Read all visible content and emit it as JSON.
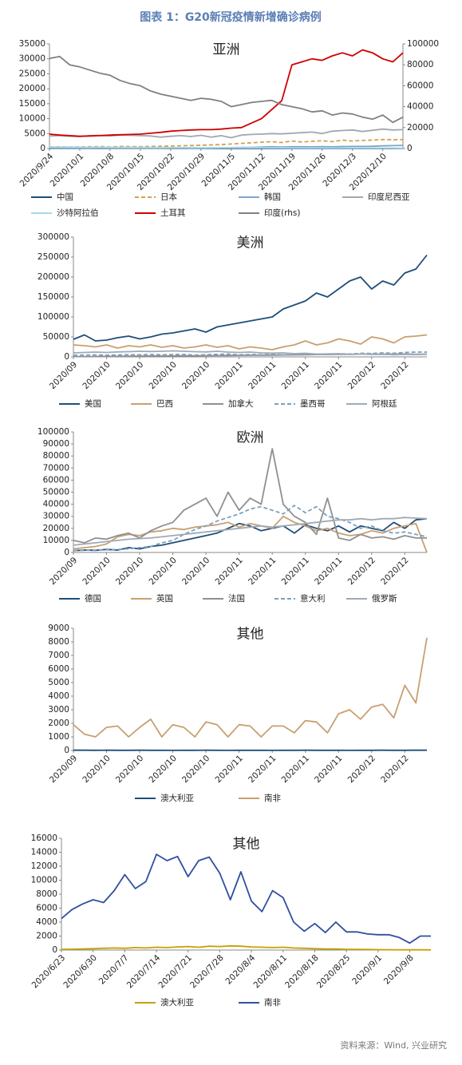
{
  "header": "图表 1：G20新冠疫情新增确诊病例",
  "source": "资料来源：Wind, 兴业研究",
  "chart_data": [
    {
      "type": "line",
      "title": "亚洲",
      "categories": [
        "2020/9/24",
        null,
        null,
        "2020/10/1",
        null,
        null,
        "2020/10/8",
        null,
        null,
        "2020/10/15",
        null,
        null,
        "2020/10/22",
        null,
        null,
        "2020/10/29",
        null,
        null,
        "2020/11/5",
        null,
        null,
        "2020/11/12",
        null,
        null,
        "2020/11/19",
        null,
        null,
        "2020/11/26",
        null,
        null,
        "2020/12/3",
        null,
        null,
        "2020/12/10",
        null,
        null
      ],
      "ylim": [
        0,
        35000
      ],
      "yticks": [
        0,
        5000,
        10000,
        15000,
        20000,
        25000,
        30000,
        35000
      ],
      "y2lim": [
        0,
        100000
      ],
      "y2ticks": [
        0,
        20000,
        40000,
        60000,
        80000,
        100000
      ],
      "series": [
        {
          "name": "中国",
          "color": "#1f4e79",
          "values": [
            20,
            15,
            25,
            20,
            20,
            10,
            20,
            20,
            15,
            20,
            25,
            20,
            20,
            15,
            20,
            25,
            20,
            20,
            15,
            20,
            25,
            20,
            15,
            20,
            20,
            25,
            20,
            15,
            20,
            25,
            20,
            20,
            15,
            20,
            25,
            20
          ]
        },
        {
          "name": "日本",
          "color": "#d4a050",
          "dash": true,
          "values": [
            500,
            600,
            500,
            550,
            600,
            650,
            500,
            700,
            650,
            600,
            700,
            750,
            800,
            900,
            1000,
            1100,
            1200,
            1300,
            1500,
            1700,
            1900,
            2100,
            2300,
            2000,
            2500,
            2200,
            2400,
            2600,
            2300,
            2800,
            2500,
            2700,
            2800,
            3000,
            2900,
            3000
          ]
        },
        {
          "name": "韩国",
          "color": "#7fa7c9",
          "values": [
            100,
            80,
            60,
            70,
            70,
            90,
            100,
            80,
            110,
            100,
            120,
            100,
            130,
            150,
            110,
            140,
            190,
            230,
            300,
            350,
            380,
            500,
            580,
            520,
            600,
            580,
            570,
            650,
            560,
            680,
            700,
            690,
            750,
            880,
            950,
            1050
          ]
        },
        {
          "name": "印度尼西亚",
          "color": "#a0a8b0",
          "values": [
            4200,
            4300,
            4100,
            4000,
            4300,
            4400,
            4200,
            4500,
            4400,
            4300,
            4200,
            3800,
            4100,
            4300,
            4000,
            4400,
            3800,
            4300,
            3600,
            4500,
            4700,
            4800,
            5000,
            4900,
            5100,
            5300,
            5500,
            5000,
            5800,
            6000,
            6200,
            5700,
            6100,
            6500,
            6200,
            6300
          ]
        },
        {
          "name": "沙特阿拉伯",
          "color": "#a8d8e8",
          "values": [
            500,
            480,
            450,
            430,
            400,
            400,
            380,
            370,
            350,
            340,
            330,
            320,
            300,
            300,
            290,
            280,
            270,
            260,
            250,
            250,
            240,
            230,
            220,
            210,
            200,
            200,
            190,
            180,
            180,
            170,
            170,
            160,
            160,
            150,
            150,
            140
          ]
        },
        {
          "name": "土耳其",
          "color": "#d00000",
          "values": [
            4800,
            4500,
            4300,
            4100,
            4200,
            4300,
            4500,
            4600,
            4700,
            4800,
            5100,
            5400,
            5800,
            6000,
            6200,
            6300,
            6300,
            6500,
            6800,
            7000,
            8500,
            10000,
            13000,
            16000,
            28000,
            29000,
            30000,
            29500,
            31000,
            32000,
            31000,
            33000,
            32000,
            30000,
            29000,
            32000
          ]
        },
        {
          "name": "印度(rhs)",
          "color": "#808080",
          "axis": "y2",
          "values": [
            86000,
            88000,
            80000,
            78000,
            75000,
            72000,
            70000,
            65000,
            62000,
            60000,
            55000,
            52000,
            50000,
            48000,
            46000,
            48000,
            47000,
            45000,
            40000,
            42000,
            44000,
            45000,
            46000,
            42000,
            40000,
            38000,
            35000,
            36000,
            32000,
            34000,
            33000,
            30000,
            28000,
            32000,
            25000,
            30000
          ]
        }
      ]
    },
    {
      "type": "line",
      "title": "美洲",
      "categories": [
        "2020/09",
        null,
        null,
        "2020/10",
        null,
        null,
        "2020/10",
        null,
        null,
        "2020/10",
        null,
        null,
        "2020/10",
        null,
        null,
        "2020/11",
        null,
        null,
        "2020/11",
        null,
        null,
        "2020/11",
        null,
        null,
        "2020/11",
        null,
        null,
        "2020/12",
        null,
        null,
        "2020/12",
        null,
        null
      ],
      "ylim": [
        0,
        300000
      ],
      "yticks": [
        0,
        50000,
        100000,
        150000,
        200000,
        250000,
        300000
      ],
      "series": [
        {
          "name": "美国",
          "color": "#1f4e79",
          "values": [
            44000,
            55000,
            40000,
            42000,
            48000,
            52000,
            45000,
            50000,
            57000,
            60000,
            65000,
            70000,
            62000,
            75000,
            80000,
            85000,
            90000,
            95000,
            100000,
            120000,
            130000,
            140000,
            160000,
            150000,
            170000,
            190000,
            200000,
            170000,
            190000,
            180000,
            210000,
            220000,
            255000
          ]
        },
        {
          "name": "巴西",
          "color": "#c8a070",
          "values": [
            30000,
            28000,
            25000,
            30000,
            22000,
            28000,
            25000,
            30000,
            24000,
            28000,
            22000,
            25000,
            30000,
            24000,
            28000,
            20000,
            25000,
            22000,
            18000,
            25000,
            30000,
            40000,
            30000,
            35000,
            45000,
            40000,
            32000,
            50000,
            45000,
            35000,
            50000,
            52000,
            55000
          ]
        },
        {
          "name": "加拿大",
          "color": "#909090",
          "values": [
            800,
            900,
            1000,
            1200,
            1500,
            1800,
            2000,
            2200,
            2300,
            2500,
            2600,
            2800,
            3000,
            3200,
            3500,
            3800,
            4000,
            4300,
            4500,
            4800,
            5000,
            5500,
            5800,
            6000,
            6300,
            6500,
            6700,
            6800,
            6900,
            7000,
            7200,
            6500,
            7000
          ]
        },
        {
          "name": "墨西哥",
          "color": "#7aa0c0",
          "dash": true,
          "values": [
            4000,
            4500,
            5000,
            4200,
            4800,
            5500,
            5000,
            6000,
            5200,
            5800,
            6000,
            4500,
            5500,
            6500,
            7000,
            5000,
            6000,
            5500,
            6500,
            5000,
            6000,
            6500,
            7000,
            5500,
            8000,
            7000,
            9000,
            8500,
            10000,
            9000,
            11000,
            12000,
            12000
          ]
        },
        {
          "name": "阿根廷",
          "color": "#a0aab4",
          "values": [
            10000,
            11000,
            12000,
            11000,
            12500,
            13000,
            14000,
            13500,
            14000,
            15000,
            14000,
            13000,
            12500,
            14000,
            12000,
            11000,
            12000,
            10000,
            9500,
            10000,
            8000,
            9000,
            7000,
            7500,
            8000,
            6500,
            7000,
            6000,
            6500,
            5500,
            6000,
            5800,
            6500
          ]
        }
      ]
    },
    {
      "type": "line",
      "title": "欧洲",
      "categories": [
        "2020/09",
        null,
        null,
        "2020/10",
        null,
        null,
        "2020/10",
        null,
        null,
        "2020/10",
        null,
        null,
        "2020/10",
        null,
        null,
        "2020/11",
        null,
        null,
        "2020/11",
        null,
        null,
        "2020/11",
        null,
        null,
        "2020/11",
        null,
        null,
        "2020/12",
        null,
        null,
        "2020/12",
        null,
        null
      ],
      "ylim": [
        0,
        100000
      ],
      "yticks": [
        0,
        10000,
        20000,
        30000,
        40000,
        50000,
        60000,
        70000,
        80000,
        90000,
        100000
      ],
      "series": [
        {
          "name": "德国",
          "color": "#1f4e79",
          "values": [
            1500,
            2000,
            1800,
            2500,
            2000,
            4000,
            3000,
            5000,
            6000,
            8000,
            10000,
            12000,
            14000,
            16000,
            20000,
            24000,
            22000,
            18000,
            20000,
            22000,
            16000,
            23000,
            20000,
            18000,
            22000,
            17000,
            22000,
            20000,
            18000,
            25000,
            20000,
            27000,
            28000
          ]
        },
        {
          "name": "英国",
          "color": "#c8a070",
          "values": [
            3000,
            4000,
            5000,
            7000,
            13000,
            15000,
            14000,
            17000,
            18000,
            20000,
            19000,
            21000,
            22000,
            23000,
            25000,
            21000,
            24000,
            22000,
            20000,
            30000,
            25000,
            22000,
            18000,
            20000,
            16000,
            14000,
            15000,
            18000,
            16000,
            20000,
            22000,
            24000,
            0
          ]
        },
        {
          "name": "法国",
          "color": "#909090",
          "values": [
            10000,
            8000,
            12000,
            11000,
            14000,
            16000,
            12000,
            18000,
            22000,
            25000,
            35000,
            40000,
            45000,
            30000,
            50000,
            35000,
            45000,
            40000,
            86000,
            40000,
            30000,
            25000,
            15000,
            45000,
            12000,
            10000,
            15000,
            12000,
            13000,
            11000,
            14000,
            12000,
            12000
          ]
        },
        {
          "name": "意大利",
          "color": "#7aa0c0",
          "dash": true,
          "values": [
            1500,
            1800,
            2000,
            2200,
            2500,
            3000,
            4000,
            5000,
            8000,
            10000,
            15000,
            19000,
            22000,
            26000,
            29000,
            32000,
            36000,
            38000,
            35000,
            32000,
            39000,
            33000,
            38000,
            30000,
            28000,
            25000,
            20000,
            22000,
            18000,
            16000,
            17000,
            15000,
            13000
          ]
        },
        {
          "name": "俄罗斯",
          "color": "#a0aab4",
          "values": [
            6000,
            7000,
            8000,
            9000,
            10000,
            11000,
            11500,
            12000,
            13000,
            14000,
            15000,
            16000,
            17000,
            18000,
            19000,
            20000,
            21000,
            22000,
            21000,
            22000,
            23000,
            24000,
            25000,
            26000,
            27000,
            27000,
            28000,
            27000,
            28000,
            28000,
            29000,
            28500,
            28000
          ]
        }
      ]
    },
    {
      "type": "line",
      "title": "其他",
      "categories": [
        "2020/09",
        null,
        null,
        "2020/10",
        null,
        null,
        "2020/10",
        null,
        null,
        "2020/10",
        null,
        null,
        "2020/10",
        null,
        null,
        "2020/11",
        null,
        null,
        "2020/11",
        null,
        null,
        "2020/11",
        null,
        null,
        "2020/11",
        null,
        null,
        "2020/12",
        null,
        null,
        "2020/12",
        null,
        null
      ],
      "ylim": [
        0,
        9000
      ],
      "yticks": [
        0,
        1000,
        2000,
        3000,
        4000,
        5000,
        6000,
        7000,
        8000,
        9000
      ],
      "series": [
        {
          "name": "澳大利亚",
          "color": "#1f4e79",
          "values": [
            20,
            18,
            12,
            15,
            10,
            12,
            15,
            10,
            12,
            8,
            10,
            12,
            15,
            10,
            8,
            10,
            12,
            10,
            8,
            10,
            12,
            15,
            10,
            12,
            10,
            8,
            12,
            10,
            15,
            12,
            10,
            18,
            15
          ]
        },
        {
          "name": "南非",
          "color": "#c8a070",
          "values": [
            1900,
            1200,
            1000,
            1700,
            1800,
            1000,
            1700,
            2300,
            1000,
            1900,
            1700,
            1000,
            2100,
            1900,
            1000,
            1900,
            1800,
            1000,
            1800,
            1800,
            1300,
            2200,
            2100,
            1300,
            2700,
            3000,
            2300,
            3200,
            3400,
            2400,
            4800,
            3500,
            8300
          ]
        }
      ]
    },
    {
      "type": "line",
      "title": "其他",
      "categories": [
        "2020/6/23",
        null,
        null,
        "2020/6/30",
        null,
        null,
        "2020/7/7",
        null,
        null,
        "2020/7/14",
        null,
        null,
        "2020/7/21",
        null,
        null,
        "2020/7/28",
        null,
        null,
        "2020/8/4",
        null,
        null,
        "2020/8/11",
        null,
        null,
        "2020/8/18",
        null,
        null,
        "2020/8/25",
        null,
        null,
        "2020/9/1",
        null,
        null,
        "2020/9/8",
        null,
        null
      ],
      "ylim": [
        0,
        16000
      ],
      "yticks": [
        0,
        2000,
        4000,
        6000,
        8000,
        10000,
        12000,
        14000,
        16000
      ],
      "series": [
        {
          "name": "澳大利亚",
          "color": "#c8a000",
          "values": [
            100,
            120,
            150,
            200,
            250,
            300,
            250,
            350,
            300,
            400,
            350,
            450,
            500,
            400,
            550,
            500,
            600,
            550,
            450,
            400,
            350,
            400,
            300,
            250,
            200,
            150,
            150,
            100,
            100,
            80,
            60,
            50,
            40,
            30,
            30,
            20
          ]
        },
        {
          "name": "南非",
          "color": "#2f4fa0",
          "values": [
            4500,
            5800,
            6600,
            7200,
            6800,
            8500,
            10800,
            8800,
            9800,
            13700,
            12800,
            13400,
            10500,
            12800,
            13300,
            11000,
            7200,
            11200,
            7000,
            5500,
            8500,
            7500,
            4000,
            2700,
            3800,
            2500,
            4000,
            2600,
            2600,
            2300,
            2200,
            2200,
            1800,
            1000,
            2000,
            2000
          ]
        }
      ]
    }
  ]
}
